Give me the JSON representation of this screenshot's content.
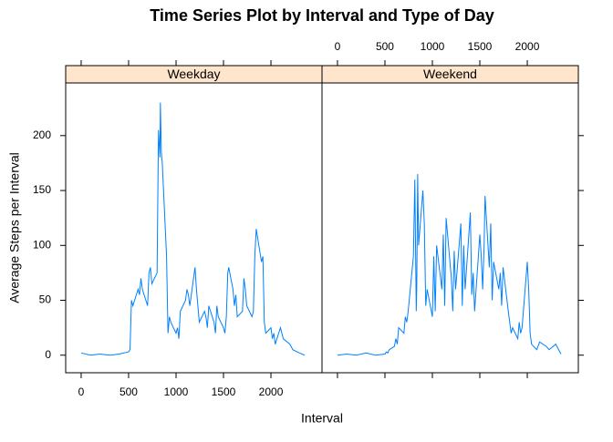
{
  "chart_data": {
    "type": "line",
    "title": "Time Series Plot by Interval and Type of Day",
    "xlabel": "Interval",
    "ylabel": "Average Steps per Interval",
    "x": [
      0,
      100,
      200,
      300,
      400,
      500,
      515,
      530,
      545,
      600,
      615,
      630,
      645,
      700,
      715,
      730,
      745,
      800,
      815,
      830,
      835,
      845,
      855,
      900,
      915,
      930,
      945,
      1000,
      1015,
      1030,
      1045,
      1100,
      1115,
      1130,
      1145,
      1200,
      1215,
      1230,
      1245,
      1300,
      1315,
      1330,
      1345,
      1400,
      1415,
      1430,
      1445,
      1500,
      1515,
      1530,
      1545,
      1555,
      1600,
      1615,
      1630,
      1645,
      1700,
      1715,
      1730,
      1745,
      1800,
      1815,
      1830,
      1845,
      1900,
      1915,
      1930,
      1945,
      2000,
      2015,
      2030,
      2045,
      2100,
      2130,
      2200,
      2230,
      2300,
      2355
    ],
    "series": [
      {
        "name": "Weekday",
        "color": "#0080ff",
        "values": [
          2,
          0,
          1,
          0,
          1,
          3,
          5,
          50,
          45,
          60,
          55,
          70,
          60,
          45,
          75,
          80,
          65,
          75,
          205,
          180,
          230,
          185,
          175,
          90,
          20,
          35,
          30,
          20,
          25,
          15,
          40,
          50,
          60,
          55,
          45,
          80,
          60,
          45,
          30,
          40,
          35,
          25,
          45,
          30,
          20,
          45,
          35,
          25,
          20,
          35,
          75,
          80,
          60,
          45,
          55,
          35,
          40,
          70,
          60,
          45,
          35,
          40,
          90,
          115,
          85,
          90,
          30,
          20,
          25,
          15,
          20,
          10,
          25,
          15,
          10,
          5,
          2,
          0
        ]
      },
      {
        "name": "Weekend",
        "color": "#0080ff",
        "values": [
          0,
          1,
          0,
          2,
          0,
          1,
          3,
          2,
          5,
          8,
          15,
          10,
          25,
          20,
          35,
          30,
          40,
          90,
          160,
          40,
          60,
          165,
          100,
          150,
          120,
          45,
          60,
          35,
          90,
          40,
          100,
          60,
          110,
          45,
          125,
          70,
          40,
          95,
          60,
          120,
          45,
          100,
          60,
          130,
          55,
          75,
          40,
          110,
          90,
          60,
          100,
          145,
          80,
          120,
          50,
          85,
          60,
          75,
          45,
          80,
          40,
          30,
          20,
          25,
          15,
          30,
          20,
          25,
          85,
          60,
          20,
          10,
          5,
          12,
          8,
          5,
          10,
          1
        ]
      }
    ],
    "strip_color": "#ffe5cc",
    "xlim": [
      -163,
      2538
    ],
    "ylim": [
      -16,
      248
    ],
    "xticks": [
      0,
      500,
      1000,
      1500,
      2000
    ],
    "yticks": [
      0,
      50,
      100,
      150,
      200
    ]
  }
}
